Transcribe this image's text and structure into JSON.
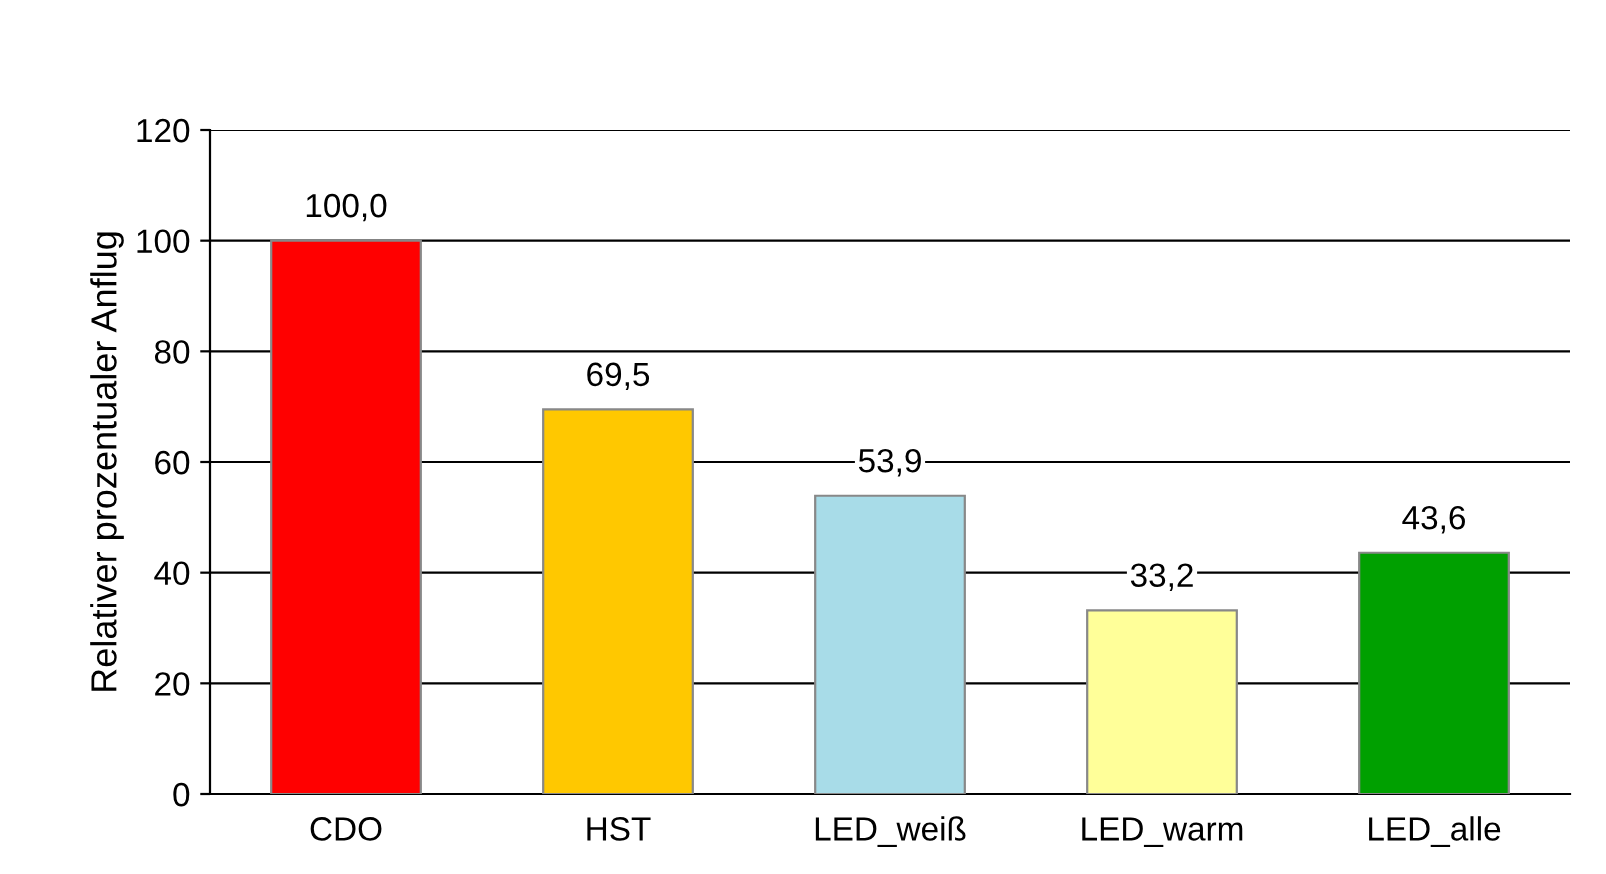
{
  "chart_data": {
    "type": "bar",
    "ylabel": "Relativer prozentualer Anflug",
    "categories": [
      "CDO",
      "HST",
      "LED_weiß",
      "LED_warm",
      "LED_alle"
    ],
    "values": [
      100.0,
      69.5,
      53.9,
      33.2,
      43.6
    ],
    "value_labels": [
      "100,0",
      "69,5",
      "53,9",
      "33,2",
      "43,6"
    ],
    "colors": [
      "#ff0000",
      "#ffc800",
      "#a8dce8",
      "#ffff99",
      "#00a000"
    ],
    "ylim": [
      0,
      120
    ],
    "yticks": [
      0,
      20,
      40,
      60,
      80,
      100,
      120
    ],
    "grid": "y"
  }
}
